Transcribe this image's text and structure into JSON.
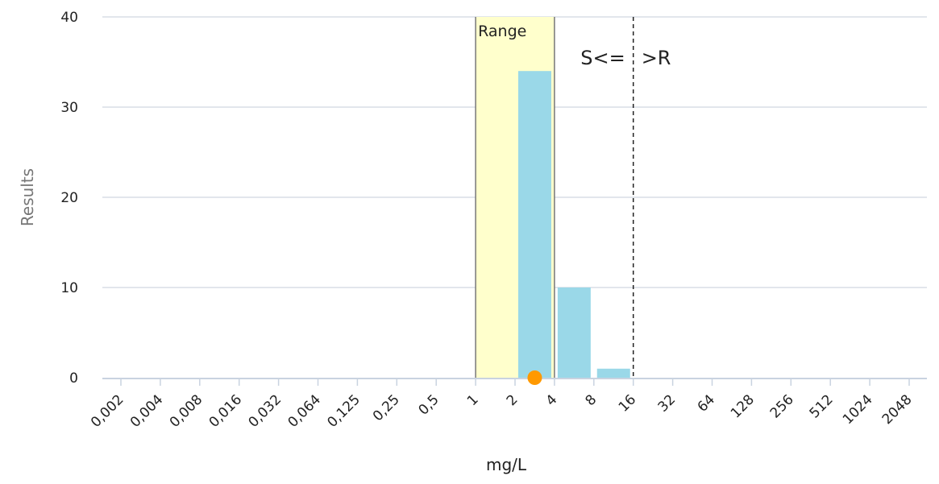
{
  "chart_data": {
    "type": "bar",
    "x_scale": "log2",
    "categories": [
      "0,002",
      "0,004",
      "0,008",
      "0,016",
      "0,032",
      "0,064",
      "0,125",
      "0,25",
      "0,5",
      "1",
      "2",
      "4",
      "8",
      "16",
      "32",
      "64",
      "128",
      "256",
      "512",
      "1024",
      "2048"
    ],
    "values": [
      0,
      0,
      0,
      0,
      0,
      0,
      0,
      0,
      0,
      0,
      34,
      10,
      1,
      0,
      0,
      0,
      0,
      0,
      0,
      0,
      0
    ],
    "bar_color": "#9ad8e8",
    "xlabel": "mg/L",
    "ylabel": "Results",
    "ylim": [
      0,
      40
    ],
    "yticks": [
      0,
      10,
      20,
      30,
      40
    ],
    "grid": true,
    "range_band": {
      "label": "Range",
      "from": "1",
      "to": "4",
      "color": "#ffffcc"
    },
    "breakpoint": {
      "at": "16",
      "label_left": "S<=",
      "label_right": ">R",
      "style": "dashed"
    },
    "marker": {
      "at": "2",
      "value": 0,
      "color": "#ff9900"
    }
  }
}
